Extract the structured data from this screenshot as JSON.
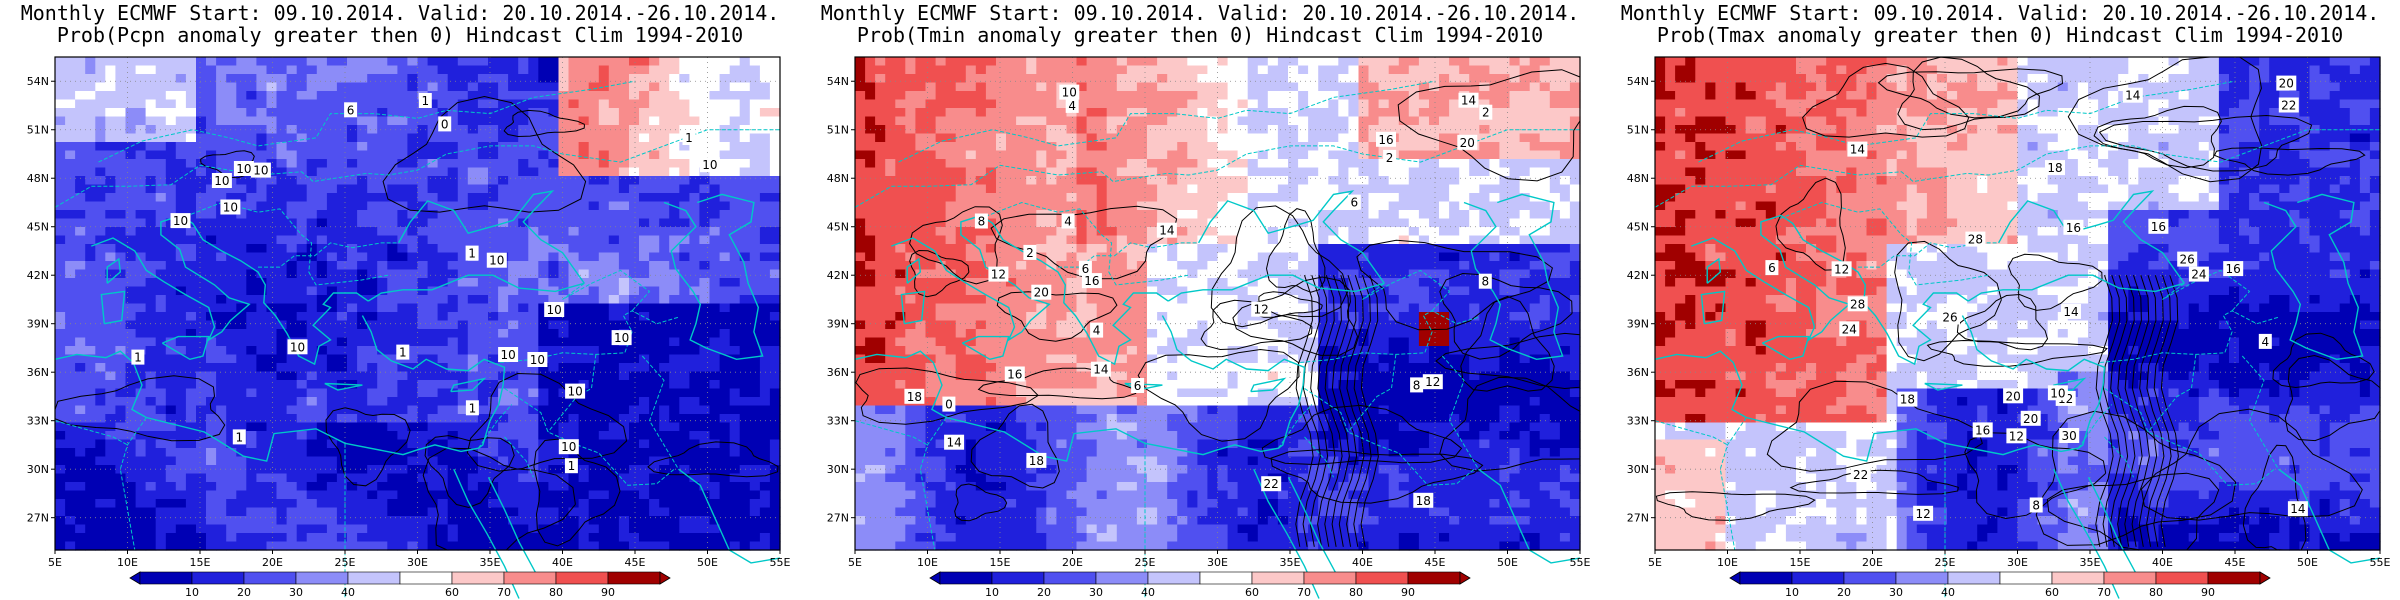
{
  "panels": [
    {
      "title_line1": "Monthly ECMWF Start: 09.10.2014. Valid: 20.10.2014.-26.10.2014.",
      "title_line2": "Prob(Pcpn anomaly greater then 0) Hindcast Clim 1994-2010",
      "variable": "Pcpn",
      "field": "dry",
      "contour_labels": [
        "10",
        "10",
        "10",
        "10",
        "10",
        "10",
        "10",
        "10",
        "10",
        "10",
        "10",
        "10",
        "1",
        "1",
        "1",
        "1",
        "1",
        "1",
        "1",
        "1",
        "0",
        "6",
        "10",
        "10"
      ]
    },
    {
      "title_line1": "Monthly ECMWF Start: 09.10.2014. Valid: 20.10.2014.-26.10.2014.",
      "title_line2": "Prob(Tmin anomaly greater then 0) Hindcast Clim 1994-2010",
      "variable": "Tmin",
      "field": "tmin",
      "contour_labels": [
        "8",
        "8",
        "4",
        "6",
        "2",
        "4",
        "6",
        "8",
        "12",
        "14",
        "16",
        "20",
        "18",
        "22",
        "14",
        "12",
        "10",
        "18",
        "20",
        "16",
        "14",
        "2",
        "4",
        "6",
        "12",
        "14",
        "16",
        "18",
        "0",
        "2"
      ]
    },
    {
      "title_line1": "Monthly ECMWF Start: 09.10.2014. Valid: 20.10.2014.-26.10.2014.",
      "title_line2": "Prob(Tmax anomaly greater then 0) Hindcast Clim 1994-2010",
      "variable": "Tmax",
      "field": "tmax",
      "contour_labels": [
        "14",
        "12",
        "16",
        "14",
        "12",
        "20",
        "22",
        "24",
        "26",
        "28",
        "30",
        "18",
        "16",
        "14",
        "12",
        "10",
        "4",
        "6",
        "8",
        "12",
        "14",
        "16",
        "20",
        "22",
        "24",
        "26",
        "28",
        "16",
        "18",
        "20"
      ]
    }
  ],
  "axes": {
    "lat_labels": [
      "54N",
      "51N",
      "48N",
      "45N",
      "42N",
      "39N",
      "36N",
      "33N",
      "30N",
      "27N"
    ],
    "lon_labels": [
      "5E",
      "10E",
      "15E",
      "20E",
      "25E",
      "30E",
      "35E",
      "40E",
      "45E",
      "50E",
      "55E"
    ]
  },
  "colorbar": {
    "ticks": [
      "10",
      "20",
      "30",
      "40",
      "60",
      "70",
      "80",
      "90"
    ],
    "colors": [
      "#0000b4",
      "#2020dc",
      "#5050f0",
      "#8c8cf8",
      "#c4c4fc",
      "#ffffff",
      "#fcc8c8",
      "#f88c8c",
      "#f05050",
      "#dc1e1e",
      "#a00000"
    ]
  },
  "colors": {
    "coastline": "#00c8c8",
    "contour": "#000000",
    "frame": "#000000"
  }
}
